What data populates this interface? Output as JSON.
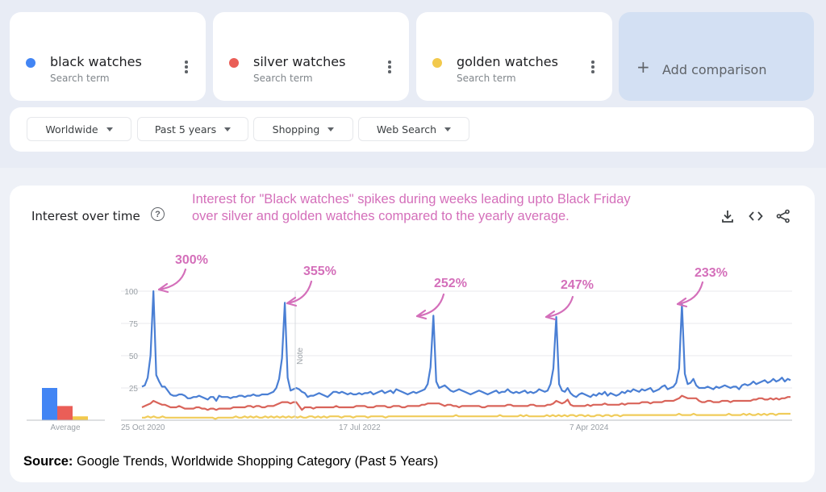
{
  "terms": [
    {
      "name": "black watches",
      "subtitle": "Search term",
      "color": "#4285f4"
    },
    {
      "name": "silver watches",
      "subtitle": "Search term",
      "color": "#ea5e57"
    },
    {
      "name": "golden watches",
      "subtitle": "Search term",
      "color": "#f2c94c"
    }
  ],
  "add_comparison": {
    "icon": "+",
    "label": "Add comparison"
  },
  "filters": [
    {
      "label": "Worldwide"
    },
    {
      "label": "Past 5 years"
    },
    {
      "label": "Shopping"
    },
    {
      "label": "Web Search"
    }
  ],
  "panel": {
    "title": "Interest over time",
    "help_icon": "?",
    "annotation_line1": "Interest for \"Black watches\" spikes during weeks leading upto Black Friday",
    "annotation_line2": "over silver and golden watches compared to the yearly average.",
    "tools": [
      "download-icon",
      "embed-icon",
      "share-icon"
    ]
  },
  "spike_labels": [
    "300%",
    "355%",
    "252%",
    "247%",
    "233%"
  ],
  "note_label": "Note",
  "average_label": "Average",
  "source": {
    "bold": "Source:",
    "text": " Google Trends, Worldwide Shopping Category (Past 5 Years)"
  },
  "chart_data": {
    "type": "line",
    "title": "Interest over time",
    "xlabel": "",
    "ylabel": "",
    "ylim": [
      0,
      100
    ],
    "yticks": [
      25,
      50,
      75,
      100
    ],
    "x_tick_labels": [
      "25 Oct 2020",
      "17 Jul 2022",
      "7 Apr 2024"
    ],
    "grid": true,
    "legend": [
      "black watches",
      "silver watches",
      "golden watches"
    ],
    "averages": {
      "black watches": 25,
      "silver watches": 11,
      "golden watches": 3
    },
    "annotations": [
      {
        "text": "300%",
        "x_index": 4,
        "value": 100
      },
      {
        "text": "355%",
        "x_index": 52,
        "value": 91
      },
      {
        "text": "252%",
        "x_index": 100,
        "value": 81
      },
      {
        "text": "247%",
        "x_index": 148,
        "value": 80
      },
      {
        "text": "233%",
        "x_index": 196,
        "value": 90
      }
    ],
    "series": [
      {
        "name": "black watches",
        "color": "#4a7fd4",
        "values": [
          26,
          27,
          33,
          50,
          100,
          35,
          30,
          26,
          26,
          23,
          20,
          19,
          19,
          20,
          20,
          19,
          17,
          17,
          18,
          18,
          19,
          18,
          17,
          16,
          18,
          18,
          15,
          19,
          18,
          18,
          18,
          17,
          18,
          18,
          19,
          19,
          18,
          19,
          19,
          20,
          19,
          19,
          20,
          20,
          20,
          21,
          22,
          25,
          32,
          48,
          91,
          33,
          23,
          24,
          25,
          24,
          22,
          21,
          18,
          19,
          19,
          20,
          21,
          20,
          19,
          18,
          20,
          22,
          22,
          21,
          22,
          21,
          20,
          21,
          20,
          20,
          21,
          20,
          21,
          21,
          22,
          20,
          21,
          22,
          23,
          21,
          22,
          23,
          21,
          24,
          23,
          22,
          21,
          20,
          21,
          22,
          21,
          22,
          23,
          24,
          28,
          41,
          81,
          30,
          25,
          26,
          27,
          25,
          23,
          22,
          23,
          24,
          23,
          22,
          21,
          20,
          21,
          22,
          23,
          22,
          21,
          20,
          21,
          22,
          23,
          21,
          22,
          22,
          24,
          22,
          21,
          22,
          21,
          22,
          23,
          21,
          22,
          21,
          22,
          24,
          23,
          22,
          23,
          28,
          40,
          80,
          28,
          23,
          22,
          25,
          21,
          19,
          18,
          20,
          21,
          20,
          19,
          18,
          20,
          19,
          21,
          20,
          22,
          19,
          21,
          20,
          19,
          20,
          22,
          21,
          23,
          22,
          24,
          23,
          22,
          24,
          23,
          24,
          25,
          22,
          23,
          24,
          26,
          27,
          24,
          25,
          26,
          29,
          40,
          90,
          36,
          28,
          29,
          32,
          27,
          25,
          25,
          25,
          26,
          25,
          24,
          26,
          25,
          26,
          27,
          26,
          25,
          26,
          26,
          24,
          27,
          28,
          27,
          28,
          30,
          28,
          29,
          30,
          31,
          29,
          30,
          32,
          30,
          31,
          33,
          30,
          32,
          31
        ]
      },
      {
        "name": "silver watches",
        "color": "#d9645a",
        "values": [
          10,
          11,
          12,
          13,
          15,
          14,
          13,
          12,
          12,
          11,
          10,
          10,
          10,
          11,
          10,
          9,
          9,
          9,
          9,
          10,
          10,
          9,
          9,
          8,
          9,
          9,
          8,
          9,
          9,
          9,
          9,
          9,
          10,
          10,
          10,
          10,
          10,
          11,
          11,
          10,
          11,
          11,
          10,
          10,
          11,
          11,
          11,
          12,
          13,
          14,
          14,
          14,
          13,
          14,
          14,
          11,
          8,
          10,
          10,
          10,
          9,
          10,
          10,
          10,
          10,
          10,
          10,
          10,
          11,
          10,
          10,
          10,
          10,
          10,
          10,
          11,
          11,
          11,
          11,
          10,
          10,
          10,
          11,
          11,
          11,
          11,
          10,
          10,
          11,
          11,
          11,
          10,
          10,
          11,
          11,
          11,
          11,
          11,
          12,
          12,
          13,
          13,
          13,
          13,
          13,
          12,
          11,
          12,
          12,
          11,
          11,
          10,
          11,
          11,
          11,
          11,
          11,
          11,
          11,
          10,
          10,
          11,
          11,
          11,
          11,
          11,
          11,
          11,
          12,
          12,
          11,
          11,
          11,
          11,
          11,
          11,
          12,
          12,
          11,
          11,
          11,
          11,
          12,
          12,
          13,
          15,
          14,
          13,
          14,
          16,
          12,
          11,
          11,
          11,
          11,
          11,
          12,
          11,
          12,
          12,
          12,
          12,
          13,
          12,
          12,
          12,
          12,
          12,
          13,
          12,
          13,
          13,
          13,
          13,
          13,
          14,
          14,
          14,
          13,
          14,
          14,
          14,
          14,
          15,
          15,
          15,
          15,
          16,
          17,
          19,
          18,
          17,
          17,
          17,
          17,
          15,
          14,
          14,
          15,
          15,
          14,
          14,
          14,
          15,
          15,
          15,
          14,
          15,
          15,
          15,
          15,
          15,
          15,
          15,
          16,
          16,
          17,
          17,
          16,
          16,
          17,
          16,
          17,
          16,
          17,
          17,
          18,
          18
        ]
      },
      {
        "name": "golden watches",
        "color": "#f0cc5a",
        "values": [
          2,
          2,
          3,
          2,
          3,
          2,
          2,
          3,
          2,
          2,
          2,
          2,
          2,
          2,
          2,
          2,
          2,
          2,
          2,
          2,
          2,
          2,
          2,
          2,
          2,
          1,
          2,
          2,
          2,
          2,
          2,
          2,
          3,
          2,
          2,
          3,
          2,
          3,
          2,
          3,
          2,
          2,
          3,
          2,
          3,
          2,
          3,
          2,
          3,
          2,
          3,
          2,
          3,
          2,
          3,
          2,
          2,
          3,
          3,
          2,
          3,
          2,
          3,
          2,
          3,
          3,
          3,
          3,
          2,
          3,
          3,
          3,
          2,
          3,
          3,
          3,
          3,
          2,
          3,
          3,
          3,
          3,
          3,
          2,
          3,
          3,
          3,
          3,
          3,
          3,
          3,
          3,
          3,
          3,
          3,
          3,
          3,
          3,
          3,
          3,
          3,
          3,
          3,
          3,
          3,
          3,
          3,
          4,
          3,
          3,
          3,
          3,
          3,
          3,
          3,
          3,
          3,
          3,
          3,
          3,
          3,
          3,
          4,
          3,
          3,
          3,
          3,
          3,
          3,
          4,
          3,
          4,
          3,
          3,
          3,
          3,
          3,
          3,
          4,
          3,
          4,
          3,
          4,
          3,
          4,
          3,
          4,
          4,
          3,
          4,
          4,
          3,
          4,
          3,
          3,
          4,
          4,
          3,
          4,
          4,
          3,
          4,
          4,
          3,
          4,
          4,
          4,
          4,
          4,
          4,
          4,
          4,
          4,
          4,
          4,
          4,
          4,
          4,
          4,
          4,
          4,
          4,
          4,
          5,
          4,
          4,
          4,
          4,
          5,
          4,
          4,
          4,
          4,
          4,
          4,
          4,
          4,
          4,
          4,
          4,
          5,
          4,
          4,
          4,
          4,
          5,
          4,
          5,
          4,
          4,
          5,
          4,
          5,
          4,
          5,
          5,
          4,
          5,
          5,
          5,
          5,
          5
        ]
      }
    ]
  }
}
